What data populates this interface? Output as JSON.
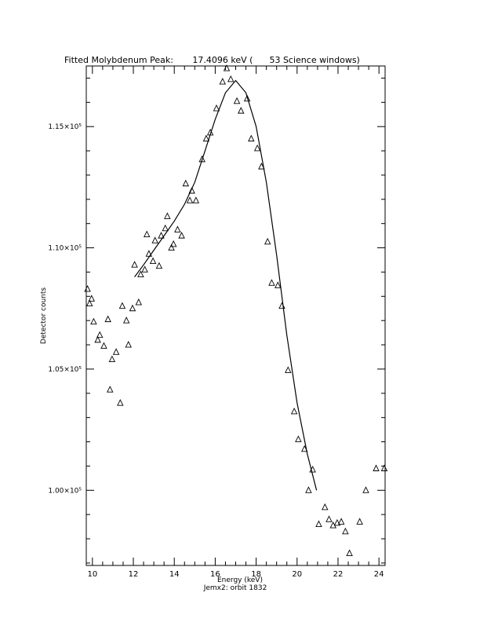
{
  "chart_data": {
    "type": "scatter",
    "title": "Fitted Molybdenum Peak:       17.4096 keV (      53 Science windows)",
    "xlabel": "Energy (keV)",
    "ylabel": "Detector counts",
    "footer": "Jemx2: orbit 1832",
    "xlim": [
      9.7,
      24.3
    ],
    "ylim": [
      96900,
      117500
    ],
    "x_ticks": [
      10,
      12,
      14,
      16,
      18,
      20,
      22,
      24
    ],
    "y_ticks": [
      {
        "value": 100000,
        "label": "1.00×10⁵"
      },
      {
        "value": 105000,
        "label": "1.05×10⁵"
      },
      {
        "value": 110000,
        "label": "1.10×10⁵"
      },
      {
        "value": 115000,
        "label": "1.15×10⁵"
      }
    ],
    "series": [
      {
        "marker": "triangle",
        "points": [
          [
            9.76,
            108300
          ],
          [
            9.86,
            107700
          ],
          [
            9.96,
            107900
          ],
          [
            10.06,
            106950
          ],
          [
            10.26,
            106200
          ],
          [
            10.36,
            106400
          ],
          [
            10.56,
            105950
          ],
          [
            10.76,
            107050
          ],
          [
            10.86,
            104150
          ],
          [
            10.96,
            105400
          ],
          [
            11.16,
            105700
          ],
          [
            11.36,
            103600
          ],
          [
            11.46,
            107600
          ],
          [
            11.66,
            107000
          ],
          [
            11.76,
            106000
          ],
          [
            11.96,
            107500
          ],
          [
            12.06,
            109300
          ],
          [
            12.26,
            107750
          ],
          [
            12.36,
            108900
          ],
          [
            12.56,
            109100
          ],
          [
            12.66,
            110550
          ],
          [
            12.76,
            109750
          ],
          [
            12.96,
            109450
          ],
          [
            13.06,
            110300
          ],
          [
            13.26,
            109250
          ],
          [
            13.36,
            110500
          ],
          [
            13.56,
            110800
          ],
          [
            13.66,
            111300
          ],
          [
            13.86,
            110000
          ],
          [
            13.96,
            110150
          ],
          [
            14.16,
            110750
          ],
          [
            14.36,
            110500
          ],
          [
            14.56,
            112650
          ],
          [
            14.76,
            111950
          ],
          [
            14.86,
            112350
          ],
          [
            15.06,
            111950
          ],
          [
            15.36,
            113650
          ],
          [
            15.56,
            114500
          ],
          [
            15.76,
            114750
          ],
          [
            16.06,
            115750
          ],
          [
            16.36,
            116850
          ],
          [
            16.56,
            117400
          ],
          [
            16.76,
            116950
          ],
          [
            17.06,
            116050
          ],
          [
            17.26,
            115650
          ],
          [
            17.56,
            116150
          ],
          [
            17.76,
            114500
          ],
          [
            18.06,
            114100
          ],
          [
            18.26,
            113350
          ],
          [
            18.56,
            110250
          ],
          [
            18.76,
            108550
          ],
          [
            19.06,
            108450
          ],
          [
            19.26,
            107600
          ],
          [
            19.56,
            104950
          ],
          [
            19.86,
            103250
          ],
          [
            20.06,
            102100
          ],
          [
            20.36,
            101700
          ],
          [
            20.56,
            100000
          ],
          [
            20.76,
            100850
          ],
          [
            21.06,
            98600
          ],
          [
            21.36,
            99300
          ],
          [
            21.56,
            98800
          ],
          [
            21.76,
            98550
          ],
          [
            21.96,
            98650
          ],
          [
            22.16,
            98700
          ],
          [
            22.36,
            98300
          ],
          [
            22.56,
            97400
          ],
          [
            23.06,
            98700
          ],
          [
            23.36,
            100000
          ],
          [
            23.86,
            100900
          ],
          [
            24.26,
            100900
          ]
        ]
      },
      {
        "marker": "line",
        "points": [
          [
            12.06,
            108800
          ],
          [
            12.5,
            109300
          ],
          [
            13.0,
            109900
          ],
          [
            13.5,
            110500
          ],
          [
            14.0,
            111100
          ],
          [
            14.5,
            111800
          ],
          [
            15.0,
            112700
          ],
          [
            15.5,
            114000
          ],
          [
            16.0,
            115300
          ],
          [
            16.5,
            116400
          ],
          [
            17.0,
            116900
          ],
          [
            17.5,
            116400
          ],
          [
            18.0,
            115000
          ],
          [
            18.5,
            112700
          ],
          [
            19.0,
            109700
          ],
          [
            19.5,
            106400
          ],
          [
            20.0,
            103600
          ],
          [
            20.5,
            101500
          ],
          [
            20.95,
            100000
          ]
        ]
      }
    ]
  }
}
